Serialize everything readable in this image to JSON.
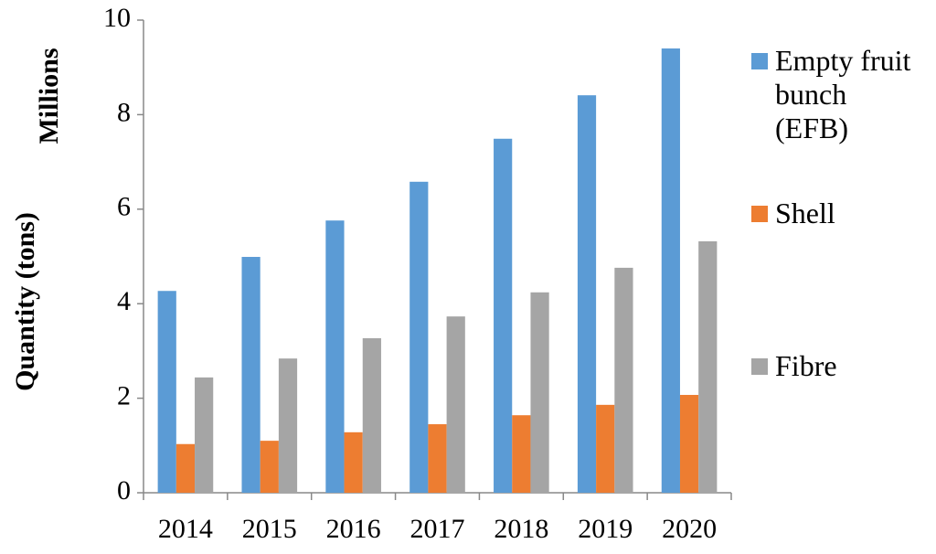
{
  "chart_data": {
    "type": "bar",
    "y_label": "Quantity (tons)",
    "y_unit_label": "Millions",
    "categories": [
      "2014",
      "2015",
      "2016",
      "2017",
      "2018",
      "2019",
      "2020"
    ],
    "series": [
      {
        "name": "Empty fruit bunch (EFB)",
        "color": "#5b9bd5",
        "values": [
          4.27,
          4.99,
          5.76,
          6.58,
          7.49,
          8.41,
          9.4
        ]
      },
      {
        "name": "Shell",
        "color": "#ed7d31",
        "values": [
          1.03,
          1.1,
          1.28,
          1.45,
          1.64,
          1.86,
          2.07
        ]
      },
      {
        "name": "Fibre",
        "color": "#a5a5a5",
        "values": [
          2.44,
          2.84,
          3.27,
          3.73,
          4.24,
          4.76,
          5.32
        ]
      }
    ],
    "ylim": [
      0,
      10
    ],
    "yticks": [
      0,
      2,
      4,
      6,
      8,
      10
    ]
  }
}
